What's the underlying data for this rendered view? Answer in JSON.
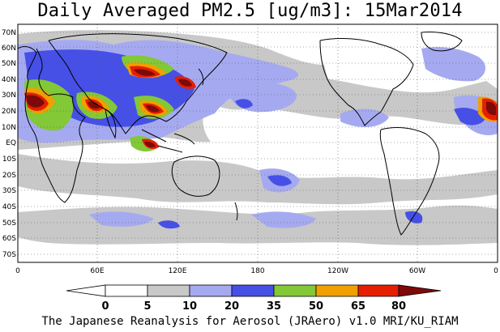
{
  "title": "Daily Averaged PM2.5 [ug/m3]: 15Mar2014",
  "footer": "The Japanese Reanalysis for Aerosol (JRAero) v1.0 MRI/KU_RIAM",
  "lat_labels": [
    "70N",
    "60N",
    "50N",
    "40N",
    "30N",
    "20N",
    "10N",
    "EQ",
    "10S",
    "20S",
    "30S",
    "40S",
    "50S",
    "60S",
    "70S"
  ],
  "lon_labels": [
    "0",
    "60E",
    "120E",
    "180",
    "120W",
    "60W",
    "0"
  ],
  "colorbar": {
    "ticks": [
      "0",
      "5",
      "10",
      "20",
      "35",
      "50",
      "65",
      "80"
    ],
    "colors": [
      "#ffffff",
      "#c8c8c8",
      "#a5aaf0",
      "#4650e6",
      "#82c837",
      "#f0a000",
      "#e61e00",
      "#7d0a0a"
    ]
  },
  "legend": "plume colors follow the colorbar bins"
}
